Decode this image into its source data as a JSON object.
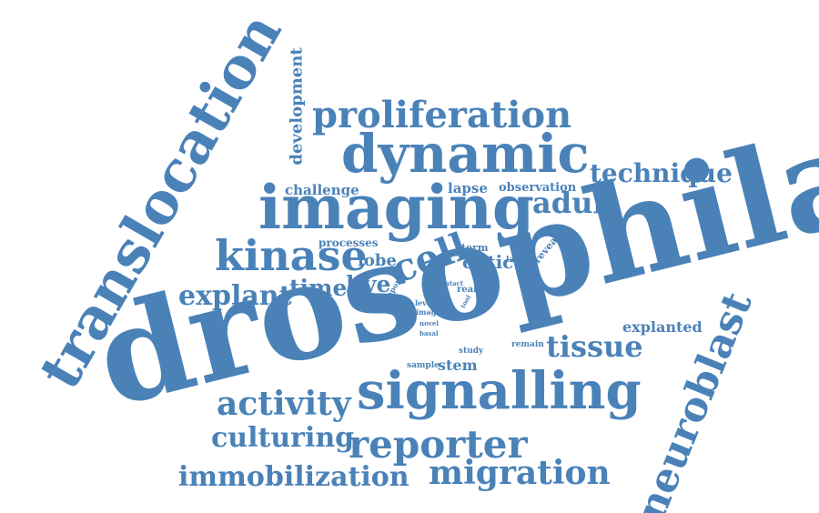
{
  "color": "#4a82b8",
  "words": {
    "drosophila": "drosophila",
    "translocation": "translocation",
    "imaging": "imaging",
    "signalling": "signalling",
    "dynamic": "dynamic",
    "proliferation": "proliferation",
    "neuroblast": "neuroblast",
    "reporter": "reporter",
    "migration": "migration",
    "immobilization": "immobilization",
    "kinase": "kinase",
    "activity": "activity",
    "culturing": "culturing",
    "technique": "technique",
    "explant": "explant",
    "tissue": "tissue",
    "cell": "cell",
    "adult": "adult",
    "development": "development",
    "time": "time",
    "live": "live",
    "explanted": "explanted",
    "optic": "optic",
    "lobe": "lobe",
    "stem": "stem",
    "challenge": "challenge",
    "lapse": "lapse",
    "observation": "observation",
    "processes": "processes",
    "term": "term",
    "lamina": "lamina",
    "reveal": "reveal",
    "intact": "intact",
    "real": "real",
    "tool": "tool",
    "report": "report",
    "level": "level",
    "image": "image",
    "novel": "novel",
    "basal": "basal",
    "study": "study",
    "remain": "remain",
    "sample": "sample"
  }
}
